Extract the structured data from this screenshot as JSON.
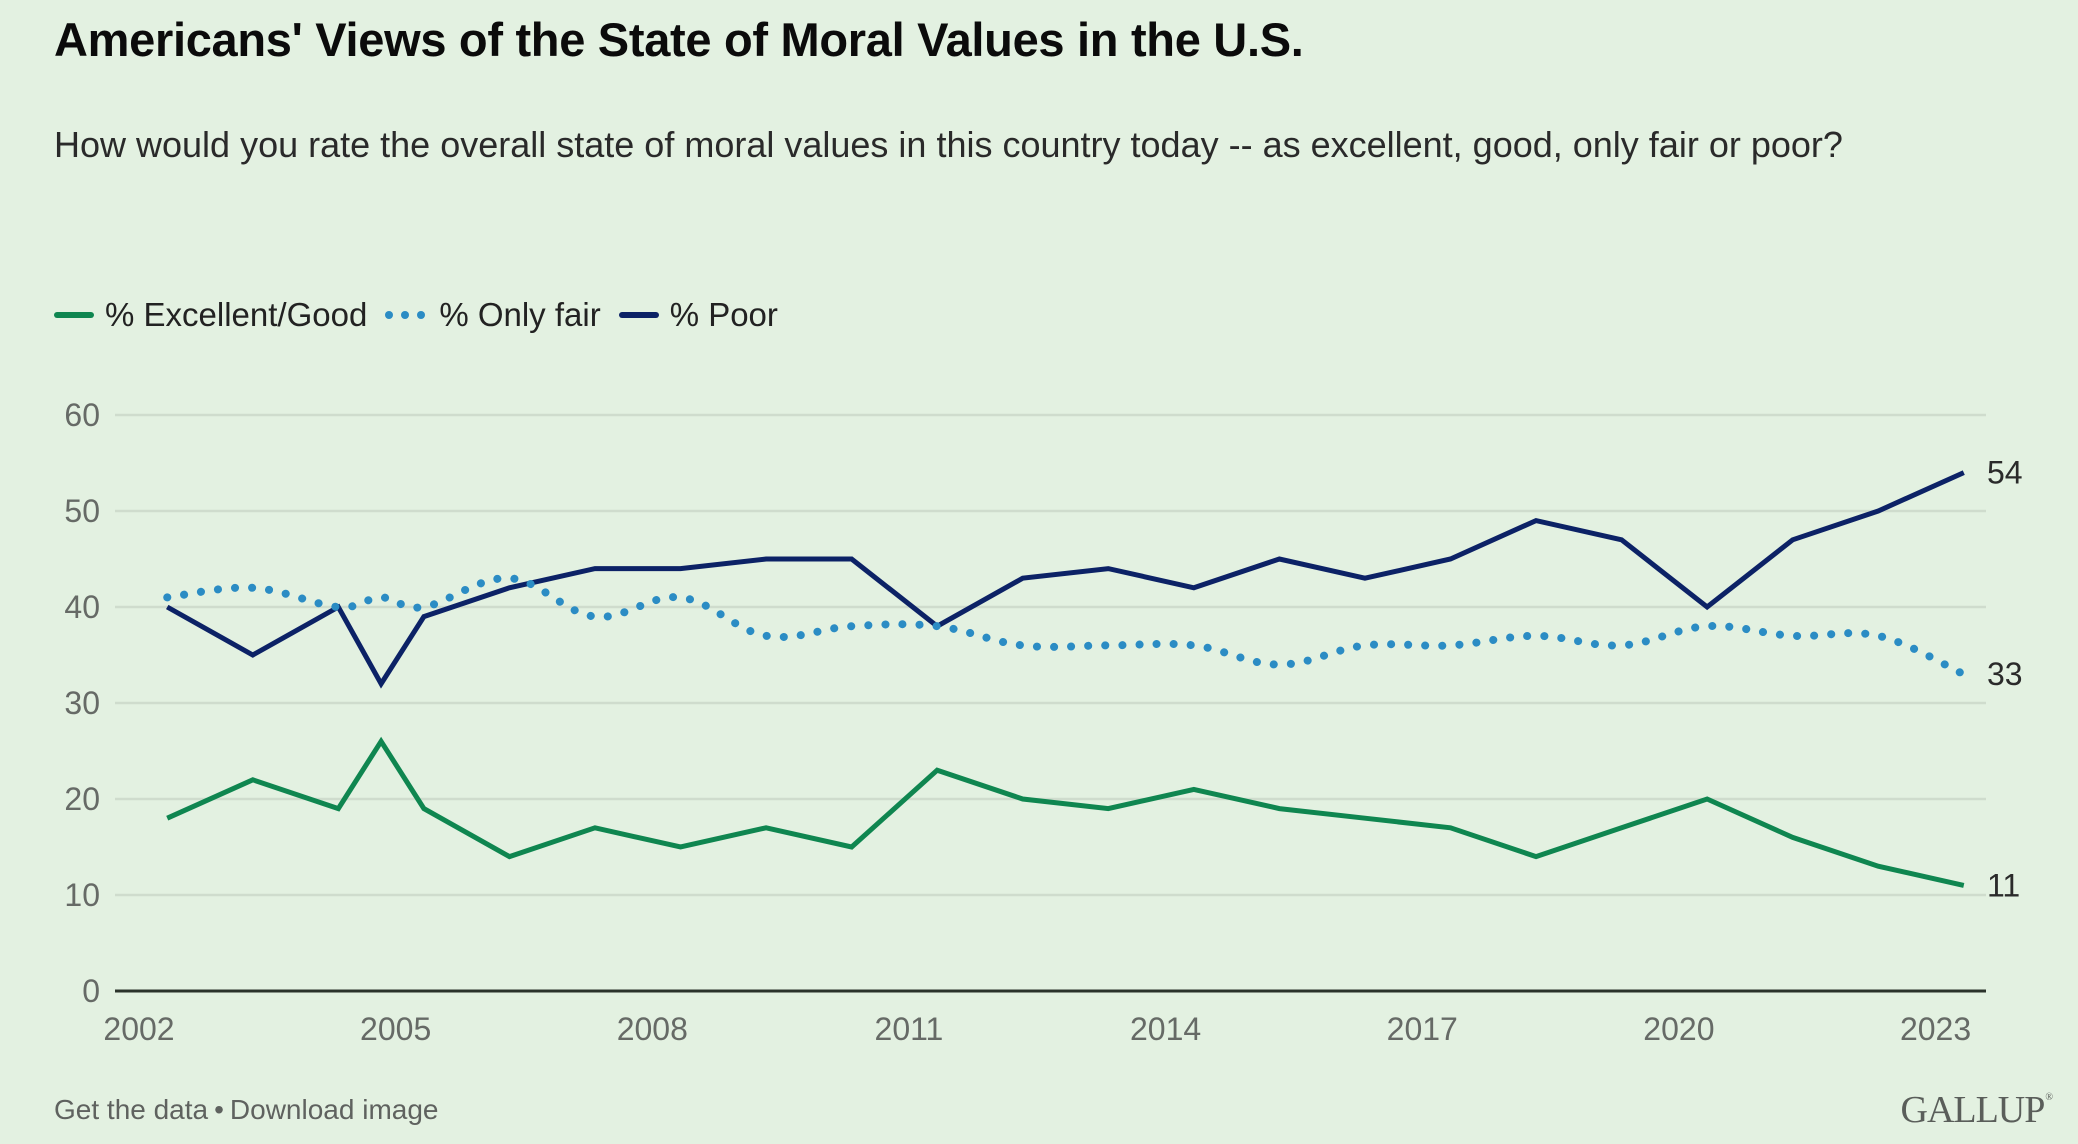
{
  "header": {
    "title": "Americans' Views of the State of Moral Values in the U.S.",
    "subtitle": "How would you rate the overall state of moral values in this country today -- as excellent, good, only fair or poor?"
  },
  "legend": {
    "items": [
      {
        "label": "% Excellent/Good",
        "style": "solid",
        "color": "#0f8650"
      },
      {
        "label": "% Only fair",
        "style": "dotted",
        "color": "#2b8cc4"
      },
      {
        "label": "% Poor",
        "style": "solid",
        "color": "#0c2266"
      }
    ]
  },
  "footer": {
    "get_data": "Get the data",
    "separator": "•",
    "download": "Download image",
    "brand": "GALLUP",
    "brand_mark": "®"
  },
  "colors": {
    "background": "#e3f1e1",
    "gridline": "#cfdccd",
    "axis": "#2b332b"
  },
  "chart_data": {
    "type": "line",
    "title": "Americans' Views of the State of Moral Values in the U.S.",
    "subtitle": "How would you rate the overall state of moral values in this country today -- as excellent, good, only fair or poor?",
    "xlabel": "",
    "ylabel": "",
    "ylim": [
      0,
      60
    ],
    "xlim": [
      2002,
      2023.3
    ],
    "yticks": [
      0,
      10,
      20,
      30,
      40,
      50,
      60
    ],
    "xticks": [
      2002,
      2005,
      2008,
      2011,
      2014,
      2017,
      2020,
      2023
    ],
    "grid": true,
    "legend_position": "top-left",
    "x": [
      2002.33,
      2003.33,
      2004.33,
      2004.83,
      2005.33,
      2006.33,
      2007.33,
      2008.33,
      2009.33,
      2010.33,
      2011.33,
      2012.33,
      2013.33,
      2014.33,
      2015.33,
      2016.33,
      2017.33,
      2018.33,
      2019.33,
      2020.33,
      2021.33,
      2022.33,
      2023.33
    ],
    "series": [
      {
        "name": "% Excellent/Good",
        "color": "#0f8650",
        "style": "solid",
        "values": [
          18,
          22,
          19,
          26,
          19,
          14,
          17,
          15,
          17,
          15,
          23,
          20,
          19,
          21,
          19,
          18,
          17,
          14,
          17,
          20,
          16,
          13,
          11
        ],
        "end_label": "11"
      },
      {
        "name": "% Only fair",
        "color": "#2b8cc4",
        "style": "dotted",
        "values": [
          41,
          42,
          40,
          41,
          40,
          43,
          39,
          41,
          37,
          38,
          38,
          36,
          36,
          36,
          34,
          36,
          36,
          37,
          36,
          38,
          37,
          37,
          33
        ],
        "end_label": "33"
      },
      {
        "name": "% Poor",
        "color": "#0c2266",
        "style": "solid",
        "values": [
          40,
          35,
          40,
          32,
          39,
          42,
          44,
          44,
          45,
          45,
          38,
          43,
          44,
          42,
          45,
          43,
          45,
          49,
          47,
          40,
          47,
          50,
          54
        ],
        "end_label": "54"
      }
    ]
  }
}
